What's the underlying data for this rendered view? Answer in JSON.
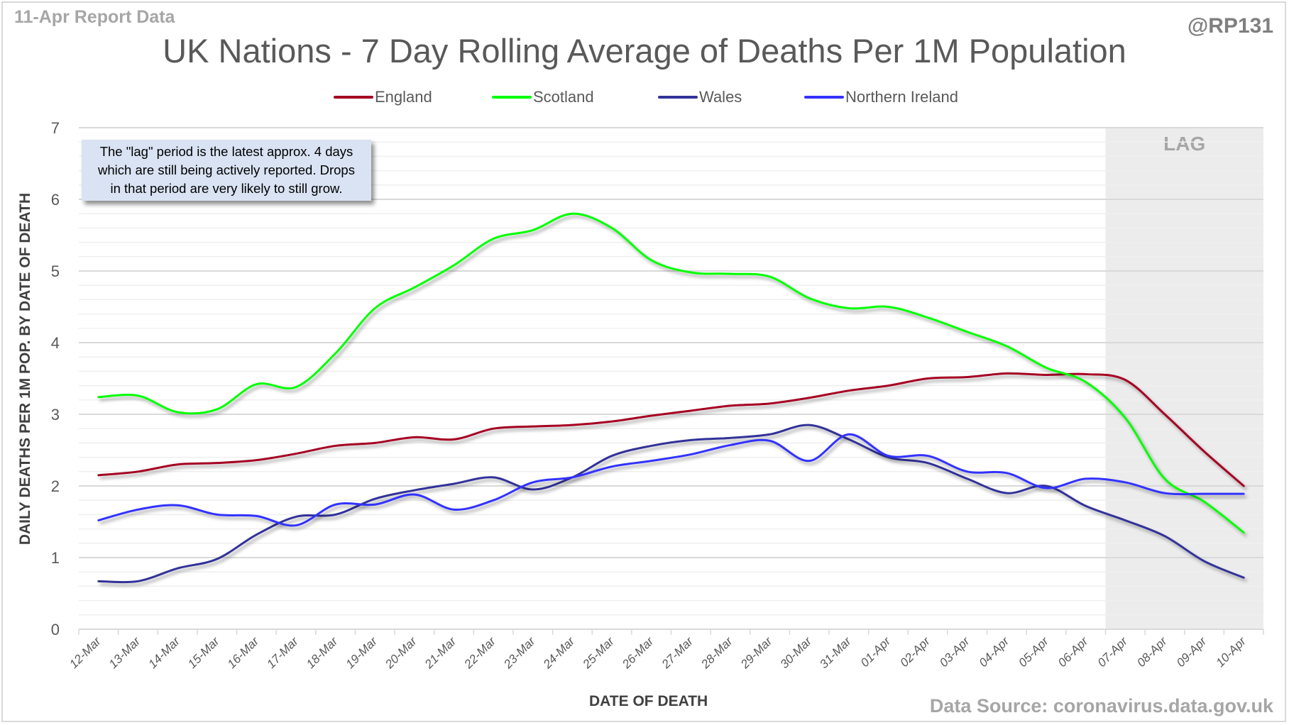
{
  "header": {
    "report_date": "11-Apr Report Data",
    "handle": "@RP131",
    "source": "Data Source: coronavirus.data.gov.uk"
  },
  "annotation": {
    "lines": [
      "The \"lag\" period is the latest approx. 4 days",
      "which are still being actively reported.  Drops",
      "in that period are very likely to still grow."
    ],
    "lag_label": "LAG",
    "lag_start": "07-Apr",
    "lag_end": "10-Apr"
  },
  "chart_data": {
    "type": "line",
    "title": "UK Nations - 7 Day Rolling Average of Deaths Per 1M Population",
    "xlabel": "DATE OF DEATH",
    "ylabel": "DAILY DEATHS PER 1M POP. BY DATE OF DEATH",
    "ylim": [
      0,
      7
    ],
    "yticks": [
      0,
      1,
      2,
      3,
      4,
      5,
      6,
      7
    ],
    "grid": true,
    "legend_position": "top",
    "categories": [
      "12-Mar",
      "13-Mar",
      "14-Mar",
      "15-Mar",
      "16-Mar",
      "17-Mar",
      "18-Mar",
      "19-Mar",
      "20-Mar",
      "21-Mar",
      "22-Mar",
      "23-Mar",
      "24-Mar",
      "25-Mar",
      "26-Mar",
      "27-Mar",
      "28-Mar",
      "29-Mar",
      "30-Mar",
      "31-Mar",
      "01-Apr",
      "02-Apr",
      "03-Apr",
      "04-Apr",
      "05-Apr",
      "06-Apr",
      "07-Apr",
      "08-Apr",
      "09-Apr",
      "10-Apr"
    ],
    "series": [
      {
        "name": "England",
        "color": "#a50021",
        "values": [
          2.15,
          2.2,
          2.3,
          2.32,
          2.36,
          2.45,
          2.56,
          2.6,
          2.68,
          2.65,
          2.8,
          2.83,
          2.85,
          2.9,
          2.98,
          3.05,
          3.12,
          3.15,
          3.23,
          3.33,
          3.4,
          3.5,
          3.52,
          3.57,
          3.55,
          3.56,
          3.48,
          3.0,
          2.48,
          2.0
        ]
      },
      {
        "name": "Scotland",
        "color": "#00ff00",
        "values": [
          3.24,
          3.26,
          3.03,
          3.07,
          3.42,
          3.38,
          3.85,
          4.48,
          4.77,
          5.08,
          5.45,
          5.57,
          5.8,
          5.6,
          5.15,
          4.98,
          4.96,
          4.92,
          4.62,
          4.48,
          4.5,
          4.35,
          4.15,
          3.95,
          3.65,
          3.45,
          2.95,
          2.1,
          1.78,
          1.35
        ]
      },
      {
        "name": "Wales",
        "color": "#333399",
        "values": [
          0.67,
          0.67,
          0.85,
          0.98,
          1.32,
          1.57,
          1.6,
          1.82,
          1.94,
          2.03,
          2.12,
          1.95,
          2.12,
          2.42,
          2.56,
          2.64,
          2.67,
          2.72,
          2.85,
          2.65,
          2.4,
          2.32,
          2.1,
          1.9,
          2.0,
          1.72,
          1.52,
          1.3,
          0.95,
          0.72
        ]
      },
      {
        "name": "Northern Ireland",
        "color": "#3333ff",
        "values": [
          1.52,
          1.67,
          1.73,
          1.6,
          1.58,
          1.45,
          1.74,
          1.74,
          1.88,
          1.67,
          1.8,
          2.05,
          2.12,
          2.27,
          2.35,
          2.44,
          2.57,
          2.63,
          2.35,
          2.72,
          2.42,
          2.42,
          2.2,
          2.18,
          1.97,
          2.1,
          2.05,
          1.9,
          1.89,
          1.89
        ]
      }
    ]
  }
}
